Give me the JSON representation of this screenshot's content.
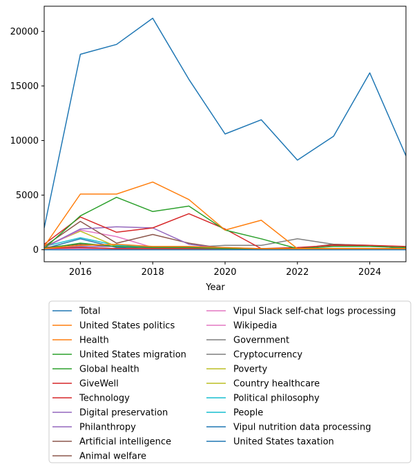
{
  "chart_data": {
    "type": "line",
    "title": "",
    "xlabel": "Year",
    "ylabel": "",
    "xlim": [
      2015,
      2025
    ],
    "ylim": [
      -1100,
      22300
    ],
    "x_ticks": [
      2016,
      2018,
      2020,
      2022,
      2024
    ],
    "y_ticks": [
      0,
      5000,
      10000,
      15000,
      20000
    ],
    "x_tick_labels": [
      "2016",
      "2018",
      "2020",
      "2022",
      "2024"
    ],
    "y_tick_labels": [
      "0",
      "5000",
      "10000",
      "15000",
      "20000"
    ],
    "legend_placement": "below",
    "x": [
      2015,
      2016,
      2017,
      2018,
      2019,
      2020,
      2021,
      2022,
      2023,
      2024,
      2025
    ],
    "series": [
      {
        "name": "Total",
        "color": "#1f77b4",
        "values": [
          2000,
          17900,
          18800,
          21200,
          15600,
          10600,
          11900,
          8200,
          10400,
          16200,
          8600
        ]
      },
      {
        "name": "United States politics",
        "color": "#ff7f0e",
        "values": [
          300,
          5100,
          5100,
          6200,
          4600,
          1800,
          2700,
          100,
          100,
          100,
          100
        ]
      },
      {
        "name": "Health",
        "color": "#ff7f0e",
        "values": [
          100,
          400,
          500,
          300,
          300,
          200,
          100,
          100,
          100,
          100,
          100
        ]
      },
      {
        "name": "United States migration",
        "color": "#2ca02c",
        "values": [
          100,
          3100,
          4800,
          3500,
          4000,
          1800,
          1000,
          100,
          300,
          300,
          200
        ]
      },
      {
        "name": "Global health",
        "color": "#2ca02c",
        "values": [
          100,
          600,
          300,
          200,
          200,
          100,
          100,
          100,
          100,
          100,
          100
        ]
      },
      {
        "name": "GiveWell",
        "color": "#d62728",
        "values": [
          500,
          3000,
          1600,
          2000,
          3300,
          1900,
          100,
          200,
          400,
          400,
          300
        ]
      },
      {
        "name": "Technology",
        "color": "#d62728",
        "values": [
          100,
          200,
          100,
          100,
          100,
          100,
          100,
          100,
          100,
          100,
          100
        ]
      },
      {
        "name": "Digital preservation",
        "color": "#9467bd",
        "values": [
          200,
          1900,
          2100,
          2000,
          500,
          100,
          100,
          100,
          100,
          100,
          100
        ]
      },
      {
        "name": "Philanthropy",
        "color": "#9467bd",
        "values": [
          100,
          300,
          300,
          200,
          200,
          100,
          100,
          100,
          100,
          100,
          100
        ]
      },
      {
        "name": "Artificial intelligence",
        "color": "#8c564b",
        "values": [
          300,
          2600,
          600,
          1400,
          600,
          100,
          100,
          100,
          500,
          400,
          100
        ]
      },
      {
        "name": "Animal welfare",
        "color": "#8c564b",
        "values": [
          200,
          500,
          300,
          200,
          200,
          100,
          100,
          100,
          100,
          100,
          100
        ]
      },
      {
        "name": "Vipul Slack self-chat logs processing",
        "color": "#e377c2",
        "values": [
          100,
          100,
          100,
          100,
          100,
          100,
          100,
          100,
          100,
          100,
          100
        ]
      },
      {
        "name": "Wikipedia",
        "color": "#e377c2",
        "values": [
          200,
          1800,
          1200,
          200,
          200,
          100,
          100,
          100,
          100,
          100,
          100
        ]
      },
      {
        "name": "Government",
        "color": "#7f7f7f",
        "values": [
          100,
          200,
          100,
          100,
          200,
          400,
          400,
          1000,
          500,
          400,
          100
        ]
      },
      {
        "name": "Cryptocurrency",
        "color": "#7f7f7f",
        "values": [
          100,
          100,
          100,
          100,
          100,
          100,
          100,
          100,
          100,
          100,
          100
        ]
      },
      {
        "name": "Poverty",
        "color": "#bcbd22",
        "values": [
          100,
          200,
          100,
          100,
          100,
          100,
          100,
          100,
          100,
          100,
          100
        ]
      },
      {
        "name": "Country healthcare",
        "color": "#bcbd22",
        "values": [
          300,
          1700,
          300,
          200,
          200,
          100,
          100,
          100,
          100,
          100,
          100
        ]
      },
      {
        "name": "Political philosophy",
        "color": "#17becf",
        "values": [
          100,
          100,
          100,
          100,
          100,
          100,
          100,
          100,
          100,
          100,
          100
        ]
      },
      {
        "name": "People",
        "color": "#17becf",
        "values": [
          300,
          1100,
          400,
          300,
          300,
          200,
          100,
          100,
          100,
          100,
          100
        ]
      },
      {
        "name": "Vipul nutrition data processing",
        "color": "#1f77b4",
        "values": [
          0,
          0,
          0,
          0,
          0,
          0,
          0,
          0,
          0,
          0,
          0
        ]
      },
      {
        "name": "United States taxation",
        "color": "#1f77b4",
        "values": [
          100,
          1000,
          200,
          100,
          100,
          100,
          100,
          100,
          100,
          100,
          100
        ]
      }
    ],
    "legend": [
      {
        "label": "Total",
        "color": "#1f77b4"
      },
      {
        "label": "United States politics",
        "color": "#ff7f0e"
      },
      {
        "label": "Health",
        "color": "#ff7f0e"
      },
      {
        "label": "United States migration",
        "color": "#2ca02c"
      },
      {
        "label": "Global health",
        "color": "#2ca02c"
      },
      {
        "label": "GiveWell",
        "color": "#d62728"
      },
      {
        "label": "Technology",
        "color": "#d62728"
      },
      {
        "label": "Digital preservation",
        "color": "#9467bd"
      },
      {
        "label": "Philanthropy",
        "color": "#9467bd"
      },
      {
        "label": "Artificial intelligence",
        "color": "#8c564b"
      },
      {
        "label": "Animal welfare",
        "color": "#8c564b"
      },
      {
        "label": "Vipul Slack self-chat logs processing",
        "color": "#e377c2"
      },
      {
        "label": "Wikipedia",
        "color": "#e377c2"
      },
      {
        "label": "Government",
        "color": "#7f7f7f"
      },
      {
        "label": "Cryptocurrency",
        "color": "#7f7f7f"
      },
      {
        "label": "Poverty",
        "color": "#bcbd22"
      },
      {
        "label": "Country healthcare",
        "color": "#bcbd22"
      },
      {
        "label": "Political philosophy",
        "color": "#17becf"
      },
      {
        "label": "People",
        "color": "#17becf"
      },
      {
        "label": "Vipul nutrition data processing",
        "color": "#1f77b4"
      },
      {
        "label": "United States taxation",
        "color": "#1f77b4"
      }
    ]
  }
}
